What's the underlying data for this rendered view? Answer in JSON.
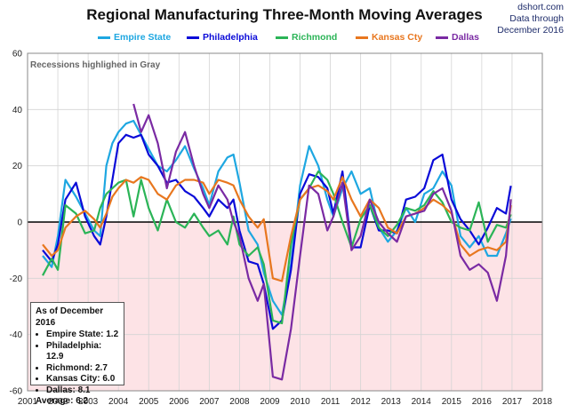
{
  "chart_data": {
    "type": "line",
    "title": "Regional Manufacturing Three-Month Moving Averages",
    "source": "dshort.com",
    "data_through_label": "Data through",
    "data_through_date": "December 2016",
    "xlabel": "",
    "ylabel": "",
    "xlim": [
      2001,
      2018
    ],
    "ylim": [
      -60,
      60
    ],
    "x_ticks": [
      "2001",
      "2002",
      "2003",
      "2004",
      "2005",
      "2006",
      "2007",
      "2008",
      "2009",
      "2010",
      "2011",
      "2012",
      "2013",
      "2014",
      "2015",
      "2016",
      "2017",
      "2018"
    ],
    "y_ticks": [
      60,
      40,
      20,
      0,
      -20,
      -40,
      -60
    ],
    "grid": true,
    "legend_position": "top",
    "recession_note": "Recessions highlighed in Gray",
    "background_below_zero": "#fde3e6",
    "series": [
      {
        "name": "Empire State",
        "color": "#1ea7e1",
        "x": [
          2001.5,
          2001.8,
          2002.0,
          2002.25,
          2002.6,
          2002.9,
          2003.2,
          2003.4,
          2003.6,
          2003.8,
          2004.0,
          2004.25,
          2004.5,
          2004.75,
          2005.0,
          2005.3,
          2005.6,
          2005.9,
          2006.2,
          2006.5,
          2006.8,
          2007.0,
          2007.3,
          2007.6,
          2007.8,
          2008.0,
          2008.3,
          2008.6,
          2008.8,
          2009.1,
          2009.4,
          2009.7,
          2010.0,
          2010.3,
          2010.6,
          2010.9,
          2011.1,
          2011.4,
          2011.7,
          2012.0,
          2012.3,
          2012.6,
          2012.9,
          2013.2,
          2013.5,
          2013.8,
          2014.1,
          2014.4,
          2014.7,
          2015.0,
          2015.3,
          2015.6,
          2015.9,
          2016.2,
          2016.5,
          2016.8,
          2016.96
        ],
        "y": [
          -12,
          -16,
          -5,
          15,
          9,
          3,
          -3,
          -5,
          20,
          28,
          32,
          35,
          36,
          31,
          26,
          20,
          18,
          22,
          27,
          19,
          12,
          6,
          18,
          23,
          24,
          14,
          -3,
          -8,
          -18,
          -28,
          -33,
          -15,
          13,
          27,
          20,
          8,
          2,
          12,
          18,
          10,
          12,
          -2,
          -7,
          -3,
          5,
          0,
          10,
          12,
          18,
          13,
          -5,
          -9,
          -5,
          -12,
          -12,
          -4,
          1.2
        ]
      },
      {
        "name": "Philadelphia",
        "color": "#0a0ad8",
        "x": [
          2001.5,
          2001.8,
          2002.0,
          2002.25,
          2002.6,
          2002.9,
          2003.2,
          2003.4,
          2003.6,
          2003.8,
          2004.0,
          2004.25,
          2004.5,
          2004.75,
          2005.0,
          2005.3,
          2005.6,
          2005.9,
          2006.2,
          2006.5,
          2006.8,
          2007.0,
          2007.3,
          2007.6,
          2007.8,
          2008.0,
          2008.3,
          2008.6,
          2008.8,
          2009.1,
          2009.4,
          2009.7,
          2010.0,
          2010.3,
          2010.6,
          2010.9,
          2011.1,
          2011.4,
          2011.7,
          2012.0,
          2012.3,
          2012.6,
          2012.9,
          2013.2,
          2013.5,
          2013.8,
          2014.1,
          2014.4,
          2014.7,
          2015.0,
          2015.3,
          2015.6,
          2015.9,
          2016.2,
          2016.5,
          2016.8,
          2016.96
        ],
        "y": [
          -10,
          -14,
          -8,
          8,
          14,
          2,
          -5,
          -8,
          2,
          15,
          28,
          31,
          30,
          31,
          24,
          20,
          14,
          15,
          11,
          9,
          5,
          2,
          8,
          5,
          8,
          -3,
          -14,
          -15,
          -22,
          -38,
          -35,
          -17,
          10,
          17,
          16,
          12,
          3,
          18,
          -9,
          -9,
          6,
          -3,
          -3,
          -4,
          8,
          9,
          12,
          22,
          24,
          8,
          1,
          -3,
          -8,
          -2,
          5,
          3,
          12.9
        ]
      },
      {
        "name": "Richmond",
        "color": "#2bb457",
        "x": [
          2001.5,
          2001.8,
          2002.0,
          2002.25,
          2002.6,
          2002.9,
          2003.2,
          2003.4,
          2003.6,
          2003.8,
          2004.0,
          2004.25,
          2004.5,
          2004.75,
          2005.0,
          2005.3,
          2005.6,
          2005.9,
          2006.2,
          2006.5,
          2006.8,
          2007.0,
          2007.3,
          2007.6,
          2007.8,
          2008.0,
          2008.3,
          2008.6,
          2008.8,
          2009.1,
          2009.4,
          2009.7,
          2010.0,
          2010.3,
          2010.6,
          2010.9,
          2011.1,
          2011.4,
          2011.7,
          2012.0,
          2012.3,
          2012.6,
          2012.9,
          2013.2,
          2013.5,
          2013.8,
          2014.1,
          2014.4,
          2014.7,
          2015.0,
          2015.3,
          2015.6,
          2015.9,
          2016.2,
          2016.5,
          2016.8,
          2016.96
        ],
        "y": [
          -19,
          -13,
          -17,
          6,
          3,
          -4,
          -3,
          5,
          10,
          12,
          14,
          15,
          2,
          15,
          5,
          -3,
          8,
          0,
          -2,
          3,
          -2,
          -5,
          -3,
          -8,
          2,
          -8,
          -12,
          -9,
          -15,
          -35,
          -36,
          -8,
          8,
          12,
          18,
          15,
          10,
          0,
          -9,
          1,
          6,
          -2,
          -5,
          -1,
          5,
          4,
          6,
          11,
          7,
          0,
          -2,
          -3,
          7,
          -7,
          -1,
          -2,
          2.7
        ]
      },
      {
        "name": "Kansas Cty",
        "color": "#e8771f",
        "x": [
          2001.5,
          2001.8,
          2002.0,
          2002.25,
          2002.6,
          2002.9,
          2003.2,
          2003.4,
          2003.6,
          2003.8,
          2004.0,
          2004.25,
          2004.5,
          2004.75,
          2005.0,
          2005.3,
          2005.6,
          2005.9,
          2006.2,
          2006.5,
          2006.8,
          2007.0,
          2007.3,
          2007.6,
          2007.8,
          2008.0,
          2008.3,
          2008.6,
          2008.8,
          2009.1,
          2009.4,
          2009.7,
          2010.0,
          2010.3,
          2010.6,
          2010.9,
          2011.1,
          2011.4,
          2011.7,
          2012.0,
          2012.3,
          2012.6,
          2012.9,
          2013.2,
          2013.5,
          2013.8,
          2014.1,
          2014.4,
          2014.7,
          2015.0,
          2015.3,
          2015.6,
          2015.9,
          2016.2,
          2016.5,
          2016.8,
          2016.96
        ],
        "y": [
          -8,
          -12,
          -10,
          -2,
          2,
          4,
          1,
          -2,
          3,
          9,
          12,
          15,
          14,
          16,
          15,
          10,
          8,
          13,
          15,
          15,
          14,
          10,
          15,
          14,
          13,
          8,
          2,
          -2,
          1,
          -20,
          -21,
          -5,
          8,
          12,
          13,
          11,
          8,
          16,
          8,
          2,
          8,
          5,
          -2,
          -4,
          2,
          3,
          5,
          8,
          6,
          3,
          -8,
          -12,
          -10,
          -9,
          -10,
          -7,
          6.0
        ]
      },
      {
        "name": "Dallas",
        "color": "#7a2aa3",
        "x": [
          2004.5,
          2004.75,
          2005.0,
          2005.3,
          2005.6,
          2005.9,
          2006.2,
          2006.5,
          2006.8,
          2007.0,
          2007.3,
          2007.6,
          2007.8,
          2008.0,
          2008.3,
          2008.6,
          2008.8,
          2009.1,
          2009.4,
          2009.7,
          2010.0,
          2010.3,
          2010.6,
          2010.9,
          2011.1,
          2011.4,
          2011.7,
          2012.0,
          2012.3,
          2012.6,
          2012.9,
          2013.2,
          2013.5,
          2013.8,
          2014.1,
          2014.4,
          2014.7,
          2015.0,
          2015.3,
          2015.6,
          2015.9,
          2016.2,
          2016.5,
          2016.8,
          2016.96
        ],
        "y": [
          42,
          32,
          38,
          28,
          12,
          25,
          32,
          20,
          10,
          5,
          13,
          8,
          0,
          -5,
          -20,
          -28,
          -22,
          -55,
          -56,
          -38,
          -12,
          13,
          10,
          -3,
          2,
          14,
          -10,
          -5,
          8,
          0,
          -4,
          -7,
          2,
          3,
          4,
          10,
          12,
          4,
          -12,
          -17,
          -15,
          -18,
          -28,
          -12,
          8.1
        ]
      }
    ],
    "stats_box": {
      "header": "As of December 2016",
      "items": [
        "Empire State:  1.2",
        "Philadelphia: 12.9",
        "Richmond:  2.7",
        "Kansas City:  6.0",
        "Dallas:  8.1"
      ],
      "average": "Average:  6.2"
    }
  }
}
